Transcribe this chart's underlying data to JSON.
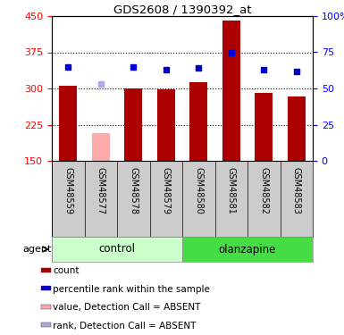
{
  "title": "GDS2608 / 1390392_at",
  "samples": [
    "GSM48559",
    "GSM48577",
    "GSM48578",
    "GSM48579",
    "GSM48580",
    "GSM48581",
    "GSM48582",
    "GSM48583"
  ],
  "bar_values": [
    305,
    207,
    300,
    298,
    313,
    440,
    290,
    283
  ],
  "bar_colors": [
    "#aa0000",
    "#ffaaaa",
    "#aa0000",
    "#aa0000",
    "#aa0000",
    "#aa0000",
    "#aa0000",
    "#aa0000"
  ],
  "rank_values": [
    65,
    53,
    65,
    63,
    64,
    75,
    63,
    62
  ],
  "rank_colors": [
    "#0000cc",
    "#aaaaee",
    "#0000cc",
    "#0000cc",
    "#0000cc",
    "#0000cc",
    "#0000cc",
    "#0000cc"
  ],
  "absent_flags": [
    false,
    true,
    false,
    false,
    false,
    false,
    false,
    false
  ],
  "ylim_left": [
    150,
    450
  ],
  "ylim_right": [
    0,
    100
  ],
  "yticks_left": [
    150,
    225,
    300,
    375,
    450
  ],
  "yticks_right": [
    0,
    25,
    50,
    75,
    100
  ],
  "ytick_labels_right": [
    "0",
    "25",
    "50",
    "75",
    "100%"
  ],
  "groups": [
    {
      "label": "control",
      "start": 0,
      "end": 3,
      "color": "#ccffcc",
      "border_color": "#888888"
    },
    {
      "label": "olanzapine",
      "start": 4,
      "end": 7,
      "color": "#44dd44",
      "border_color": "#888888"
    }
  ],
  "agent_label": "agent",
  "bar_width": 0.55,
  "background_color": "#ffffff",
  "legend_items": [
    {
      "label": "count",
      "color": "#aa0000"
    },
    {
      "label": "percentile rank within the sample",
      "color": "#0000cc"
    },
    {
      "label": "value, Detection Call = ABSENT",
      "color": "#ffaaaa"
    },
    {
      "label": "rank, Detection Call = ABSENT",
      "color": "#aaaadd"
    }
  ],
  "grid_dotted_at": [
    225,
    300,
    375
  ]
}
